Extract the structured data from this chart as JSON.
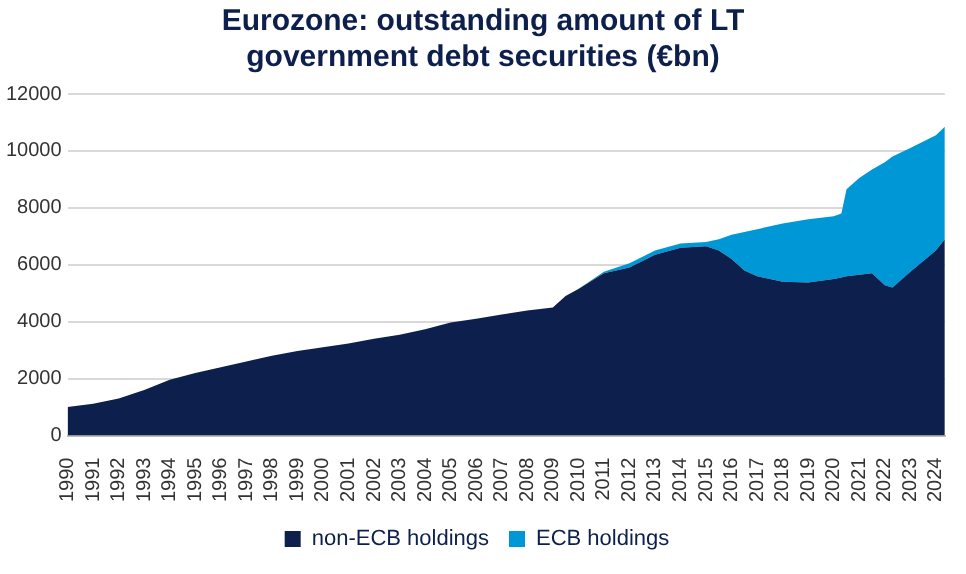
{
  "chart_data": {
    "type": "area",
    "title": "Eurozone: outstanding amount of LT government debt securities (€bn)",
    "stacked": true,
    "x": [
      1990,
      1991,
      1992,
      1993,
      1994,
      1995,
      1996,
      1997,
      1998,
      1999,
      2000,
      2001,
      2002,
      2003,
      2004,
      2005,
      2006,
      2007,
      2008,
      2009,
      2009.5,
      2010,
      2011,
      2012,
      2013,
      2014,
      2015,
      2015.5,
      2016,
      2016.5,
      2017,
      2018,
      2019,
      2020,
      2020.3,
      2020.5,
      2021,
      2021.5,
      2022,
      2022.3,
      2023,
      2024,
      2024.35
    ],
    "series": [
      {
        "name": "non-ECB holdings",
        "color": "#0d1f4d",
        "values": [
          1000,
          1120,
          1300,
          1600,
          1960,
          2200,
          2400,
          2600,
          2800,
          2970,
          3100,
          3230,
          3400,
          3540,
          3730,
          3970,
          4100,
          4250,
          4390,
          4500,
          4900,
          5150,
          5700,
          5900,
          6350,
          6600,
          6650,
          6500,
          6200,
          5800,
          5600,
          5400,
          5380,
          5500,
          5550,
          5600,
          5650,
          5700,
          5280,
          5200,
          5750,
          6500,
          6900
        ]
      },
      {
        "name": "ECB holdings",
        "color": "#0097d7",
        "values": [
          null,
          null,
          null,
          null,
          null,
          null,
          null,
          null,
          null,
          null,
          null,
          null,
          null,
          null,
          null,
          null,
          null,
          null,
          null,
          null,
          null,
          0,
          50,
          150,
          150,
          150,
          150,
          400,
          850,
          1350,
          1650,
          2050,
          2220,
          2200,
          2250,
          3050,
          3400,
          3650,
          4320,
          4600,
          4350,
          4050,
          3950
        ]
      }
    ],
    "xlim": [
      1990,
      2024.35
    ],
    "xticks": [
      1990,
      1991,
      1992,
      1993,
      1994,
      1995,
      1996,
      1997,
      1998,
      1999,
      2000,
      2001,
      2002,
      2003,
      2004,
      2005,
      2006,
      2007,
      2008,
      2009,
      2010,
      2011,
      2012,
      2013,
      2014,
      2015,
      2016,
      2017,
      2018,
      2019,
      2020,
      2021,
      2022,
      2023,
      2024
    ],
    "ylim": [
      0,
      12000
    ],
    "yticks": [
      0,
      2000,
      4000,
      6000,
      8000,
      10000,
      12000
    ],
    "grid": "y",
    "legend": "bottom"
  }
}
